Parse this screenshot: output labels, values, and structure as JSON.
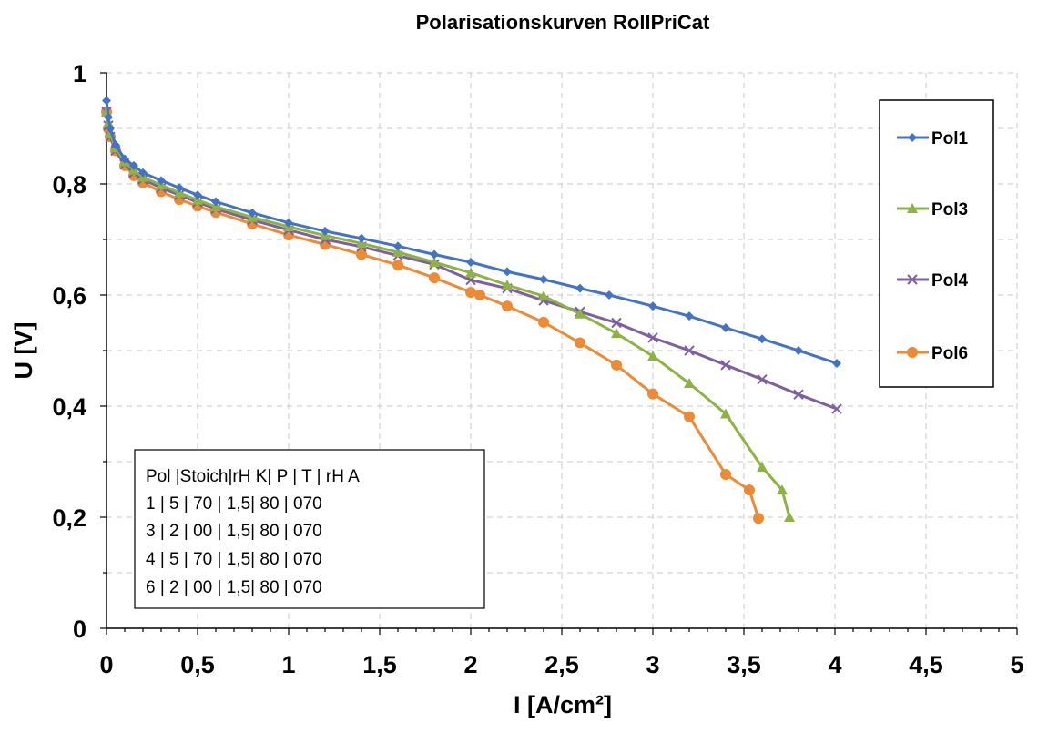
{
  "chart_data": {
    "type": "line",
    "title": "Polarisationskurven RollPriCat",
    "xlabel": "I [A/cm²]",
    "ylabel": "U [V]",
    "xlim": [
      0,
      5
    ],
    "ylim": [
      0,
      1
    ],
    "x_ticks": [
      "0",
      "0,5",
      "1",
      "1,5",
      "2",
      "2,5",
      "3",
      "3,5",
      "4",
      "4,5",
      "5"
    ],
    "y_ticks": [
      "0",
      "0,2",
      "0,4",
      "0,6",
      "0,8",
      "1"
    ],
    "grid": "horizontal dashed",
    "legend_position": "right",
    "series": [
      {
        "name": "Pol1",
        "color": "#4472C4",
        "marker": "diamond",
        "points": [
          [
            0,
            0.95
          ],
          [
            0.01,
            0.92
          ],
          [
            0.02,
            0.9
          ],
          [
            0.05,
            0.87
          ],
          [
            0.1,
            0.845
          ],
          [
            0.15,
            0.833
          ],
          [
            0.2,
            0.82
          ],
          [
            0.3,
            0.806
          ],
          [
            0.4,
            0.793
          ],
          [
            0.5,
            0.78
          ],
          [
            0.6,
            0.768
          ],
          [
            0.8,
            0.748
          ],
          [
            1.0,
            0.73
          ],
          [
            1.2,
            0.715
          ],
          [
            1.4,
            0.702
          ],
          [
            1.6,
            0.688
          ],
          [
            1.8,
            0.673
          ],
          [
            2.0,
            0.659
          ],
          [
            2.2,
            0.642
          ],
          [
            2.4,
            0.628
          ],
          [
            2.6,
            0.612
          ],
          [
            2.76,
            0.6
          ],
          [
            3.0,
            0.58
          ],
          [
            3.2,
            0.562
          ],
          [
            3.4,
            0.541
          ],
          [
            3.6,
            0.521
          ],
          [
            3.8,
            0.5
          ],
          [
            4.01,
            0.477
          ]
        ]
      },
      {
        "name": "Pol3",
        "color": "#8DB344",
        "marker": "triangle",
        "points": [
          [
            0,
            0.93
          ],
          [
            0.01,
            0.91
          ],
          [
            0.02,
            0.89
          ],
          [
            0.05,
            0.865
          ],
          [
            0.1,
            0.84
          ],
          [
            0.15,
            0.825
          ],
          [
            0.2,
            0.812
          ],
          [
            0.3,
            0.798
          ],
          [
            0.4,
            0.784
          ],
          [
            0.5,
            0.771
          ],
          [
            0.6,
            0.759
          ],
          [
            0.8,
            0.74
          ],
          [
            1.0,
            0.723
          ],
          [
            1.2,
            0.707
          ],
          [
            1.4,
            0.693
          ],
          [
            1.6,
            0.677
          ],
          [
            1.8,
            0.659
          ],
          [
            2.0,
            0.64
          ],
          [
            2.2,
            0.618
          ],
          [
            2.4,
            0.598
          ],
          [
            2.6,
            0.566
          ],
          [
            2.8,
            0.531
          ],
          [
            3.0,
            0.49
          ],
          [
            3.2,
            0.441
          ],
          [
            3.4,
            0.386
          ],
          [
            3.6,
            0.29
          ],
          [
            3.71,
            0.249
          ],
          [
            3.75,
            0.2
          ]
        ]
      },
      {
        "name": "Pol4",
        "color": "#7E5FA0",
        "marker": "cross",
        "points": [
          [
            0,
            0.93
          ],
          [
            0.01,
            0.905
          ],
          [
            0.02,
            0.885
          ],
          [
            0.05,
            0.86
          ],
          [
            0.1,
            0.835
          ],
          [
            0.15,
            0.82
          ],
          [
            0.2,
            0.808
          ],
          [
            0.3,
            0.793
          ],
          [
            0.4,
            0.78
          ],
          [
            0.5,
            0.767
          ],
          [
            0.6,
            0.755
          ],
          [
            0.8,
            0.735
          ],
          [
            1.0,
            0.717
          ],
          [
            1.2,
            0.7
          ],
          [
            1.4,
            0.687
          ],
          [
            1.6,
            0.671
          ],
          [
            1.8,
            0.655
          ],
          [
            2.0,
            0.627
          ],
          [
            2.2,
            0.612
          ],
          [
            2.4,
            0.59
          ],
          [
            2.6,
            0.57
          ],
          [
            2.8,
            0.55
          ],
          [
            3.0,
            0.523
          ],
          [
            3.2,
            0.5
          ],
          [
            3.4,
            0.474
          ],
          [
            3.6,
            0.448
          ],
          [
            3.8,
            0.421
          ],
          [
            4.01,
            0.395
          ]
        ]
      },
      {
        "name": "Pol6",
        "color": "#ED8A35",
        "marker": "circle",
        "points": [
          [
            0,
            0.93
          ],
          [
            0.01,
            0.9
          ],
          [
            0.02,
            0.885
          ],
          [
            0.05,
            0.86
          ],
          [
            0.1,
            0.833
          ],
          [
            0.15,
            0.815
          ],
          [
            0.2,
            0.802
          ],
          [
            0.3,
            0.786
          ],
          [
            0.4,
            0.772
          ],
          [
            0.5,
            0.76
          ],
          [
            0.6,
            0.749
          ],
          [
            0.8,
            0.728
          ],
          [
            1.0,
            0.708
          ],
          [
            1.2,
            0.691
          ],
          [
            1.4,
            0.673
          ],
          [
            1.6,
            0.654
          ],
          [
            1.8,
            0.631
          ],
          [
            2.0,
            0.605
          ],
          [
            2.05,
            0.6
          ],
          [
            2.2,
            0.58
          ],
          [
            2.4,
            0.551
          ],
          [
            2.6,
            0.514
          ],
          [
            2.8,
            0.474
          ],
          [
            3.0,
            0.422
          ],
          [
            3.2,
            0.381
          ],
          [
            3.4,
            0.277
          ],
          [
            3.53,
            0.249
          ],
          [
            3.58,
            0.198
          ]
        ]
      }
    ]
  },
  "info_table": {
    "rows": [
      "Pol |Stoich|rH  K|    P   |   T    | rH A",
      "  1 |      5      |  70  | 1,5| 80  | 070",
      "  3 |      2      |  00  | 1,5| 80  | 070",
      "  4 |      5      |  70  | 1,5| 80  | 070",
      "  6 |      2      |  00  | 1,5| 80  | 070"
    ]
  }
}
